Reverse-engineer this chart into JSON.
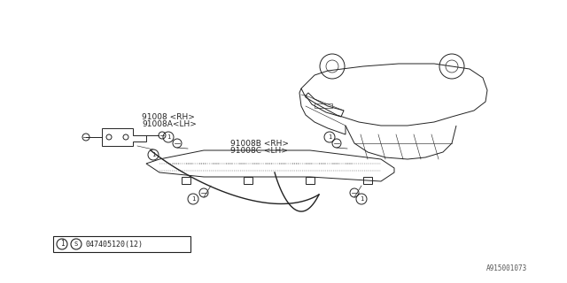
{
  "bg_color": "#ffffff",
  "border_color": "#000000",
  "diagram_color": "#333333",
  "part_label1": "91008 <RH>",
  "part_label1b": "91008A<LH>",
  "part_label2": "91008B <RH>",
  "part_label2b": "91008C <LH>",
  "legend_text": "①  Ⓢ 047405120(12)",
  "ref_number": "A915001073",
  "title_color": "#000000",
  "line_color": "#222222",
  "fill_color": "#dddddd"
}
